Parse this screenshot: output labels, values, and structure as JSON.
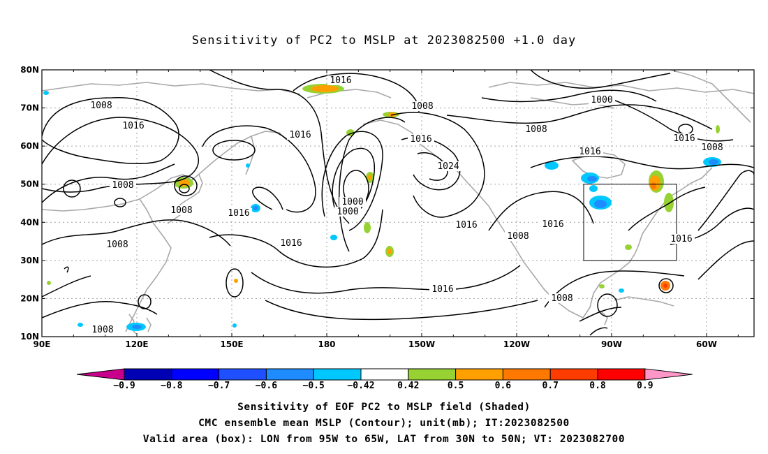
{
  "title": "Sensitivity of PC2 to MSLP at 2023082500 +1.0 day",
  "map": {
    "lat_labels": [
      "80N",
      "70N",
      "60N",
      "50N",
      "40N",
      "30N",
      "20N",
      "10N"
    ],
    "lon_labels": [
      "90E",
      "120E",
      "150E",
      "180",
      "150W",
      "120W",
      "90W",
      "60W"
    ],
    "contour_labels": [
      {
        "text": "1016"
      },
      {
        "text": "1008"
      },
      {
        "text": "1008"
      },
      {
        "text": "1016"
      },
      {
        "text": "1000"
      },
      {
        "text": "1000"
      },
      {
        "text": "1008"
      },
      {
        "text": "1016"
      },
      {
        "text": "1016"
      },
      {
        "text": "1016"
      },
      {
        "text": "1008"
      },
      {
        "text": "1016"
      },
      {
        "text": "1008"
      },
      {
        "text": "1016"
      },
      {
        "text": "1008"
      },
      {
        "text": "1016"
      },
      {
        "text": "1016"
      },
      {
        "text": "1024"
      },
      {
        "text": "1000"
      },
      {
        "text": "1008"
      },
      {
        "text": "1016"
      },
      {
        "text": "1008"
      },
      {
        "text": "1016"
      },
      {
        "text": "1016"
      },
      {
        "text": "1008"
      },
      {
        "text": "1008"
      }
    ],
    "valid_area_box": {
      "lon_from": "95W",
      "lon_to": "65W",
      "lat_from": "30N",
      "lat_to": "50N"
    }
  },
  "colorbar": {
    "labels": [
      "-0.9",
      "-0.8",
      "-0.7",
      "-0.6",
      "-0.5",
      "-0.42",
      "0.42",
      "0.5",
      "0.6",
      "0.7",
      "0.8",
      "0.9"
    ],
    "colors": [
      "#c8008c",
      "#0000b4",
      "#0000ff",
      "#1e50ff",
      "#1e8cff",
      "#00c8ff",
      "#ffffff",
      "#96d232",
      "#ffa000",
      "#ff7800",
      "#ff3c00",
      "#ff0000",
      "#ff96c8"
    ]
  },
  "captions": {
    "line1": "Sensitivity of EOF PC2 to MSLP field (Shaded)",
    "line2": "CMC ensemble mean MSLP (Contour); unit(mb); IT:2023082500",
    "line3": "Valid area (box): LON from 95W to 65W, LAT from 30N to 50N; VT: 2023082700"
  }
}
